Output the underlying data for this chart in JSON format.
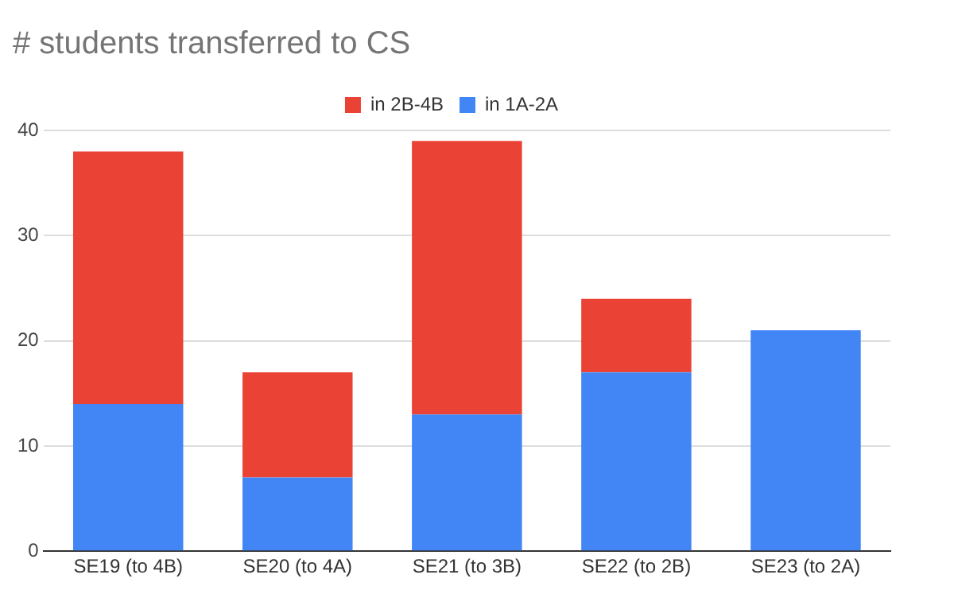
{
  "chart_data": {
    "type": "bar",
    "title": "# students transferred to CS",
    "categories": [
      "SE19 (to 4B)",
      "SE20 (to 4A)",
      "SE21 (to 3B)",
      "SE22 (to 2B)",
      "SE23 (to 2A)"
    ],
    "series": [
      {
        "name": "in 1A-2A",
        "color": "#4285f4",
        "values": [
          14,
          7,
          13,
          17,
          21
        ]
      },
      {
        "name": "in 2B-4B",
        "color": "#ea4335",
        "values": [
          24,
          10,
          26,
          7,
          0
        ]
      }
    ],
    "stacked": true,
    "ylim": [
      0,
      40
    ],
    "yticks": [
      0,
      10,
      20,
      30,
      40
    ],
    "grid": "y",
    "legend": "top"
  }
}
